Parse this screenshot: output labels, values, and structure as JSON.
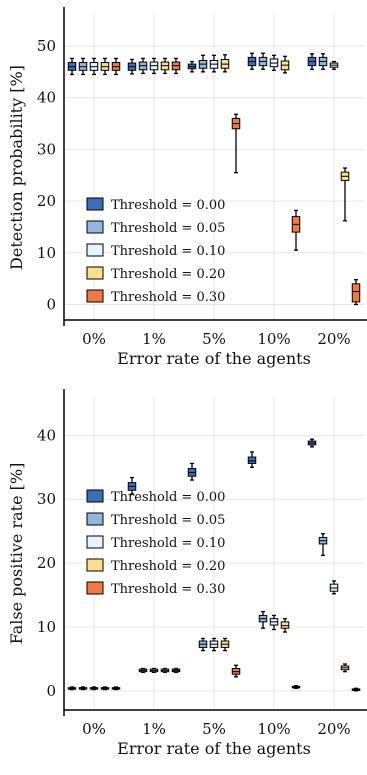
{
  "colors": {
    "series": [
      "#3a6fb7",
      "#8fb8dc",
      "#e6f3fb",
      "#fbdf8f",
      "#f07a45"
    ]
  },
  "chart_data": [
    {
      "type": "box",
      "title": "",
      "xlabel": "Error rate of the agents",
      "ylabel": "Detection probability [%]",
      "categories": [
        "0%",
        "1%",
        "5%",
        "10%",
        "20%"
      ],
      "yticks": [
        0,
        10,
        20,
        30,
        40,
        50
      ],
      "ylim": [
        -3,
        56
      ],
      "grid": true,
      "legend_position": "bottom-left",
      "series": [
        {
          "name": "Threshold = 0.00",
          "boxes": [
            {
              "min": 44.5,
              "q1": 45.3,
              "median": 46.0,
              "q3": 46.8,
              "max": 47.6
            },
            {
              "min": 44.6,
              "q1": 45.3,
              "median": 46.0,
              "q3": 46.7,
              "max": 47.4
            },
            {
              "min": 45.0,
              "q1": 45.6,
              "median": 46.0,
              "q3": 46.5,
              "max": 47.0
            },
            {
              "min": 45.5,
              "q1": 46.2,
              "median": 47.0,
              "q3": 47.8,
              "max": 48.6
            },
            {
              "min": 45.5,
              "q1": 46.2,
              "median": 47.0,
              "q3": 47.8,
              "max": 48.5
            }
          ]
        },
        {
          "name": "Threshold = 0.05",
          "boxes": [
            {
              "min": 44.5,
              "q1": 45.3,
              "median": 46.0,
              "q3": 46.8,
              "max": 47.6
            },
            {
              "min": 44.7,
              "q1": 45.4,
              "median": 46.2,
              "q3": 46.9,
              "max": 47.6
            },
            {
              "min": 45.0,
              "q1": 45.7,
              "median": 46.5,
              "q3": 47.2,
              "max": 48.2
            },
            {
              "min": 45.5,
              "q1": 46.2,
              "median": 47.0,
              "q3": 47.8,
              "max": 48.6
            },
            {
              "min": 45.5,
              "q1": 46.2,
              "median": 47.0,
              "q3": 47.8,
              "max": 48.5
            }
          ]
        },
        {
          "name": "Threshold = 0.10",
          "boxes": [
            {
              "min": 44.5,
              "q1": 45.3,
              "median": 46.0,
              "q3": 46.8,
              "max": 47.6
            },
            {
              "min": 44.7,
              "q1": 45.4,
              "median": 46.2,
              "q3": 46.9,
              "max": 47.6
            },
            {
              "min": 45.0,
              "q1": 45.7,
              "median": 46.5,
              "q3": 47.2,
              "max": 48.2
            },
            {
              "min": 45.3,
              "q1": 46.0,
              "median": 46.7,
              "q3": 47.5,
              "max": 48.2
            },
            {
              "min": 45.5,
              "q1": 45.9,
              "median": 46.3,
              "q3": 46.7,
              "max": 47.0
            }
          ]
        },
        {
          "name": "Threshold = 0.20",
          "boxes": [
            {
              "min": 44.5,
              "q1": 45.3,
              "median": 46.0,
              "q3": 46.8,
              "max": 47.6
            },
            {
              "min": 44.7,
              "q1": 45.4,
              "median": 46.2,
              "q3": 46.9,
              "max": 47.6
            },
            {
              "min": 45.0,
              "q1": 45.7,
              "median": 46.5,
              "q3": 47.4,
              "max": 48.3
            },
            {
              "min": 44.8,
              "q1": 45.4,
              "median": 46.3,
              "q3": 47.1,
              "max": 48.0
            },
            {
              "min": 16.2,
              "q1": 24.0,
              "median": 24.8,
              "q3": 25.6,
              "max": 26.4
            }
          ]
        },
        {
          "name": "Threshold = 0.30",
          "boxes": [
            {
              "min": 44.5,
              "q1": 45.3,
              "median": 46.0,
              "q3": 46.8,
              "max": 47.6
            },
            {
              "min": 44.7,
              "q1": 45.4,
              "median": 46.2,
              "q3": 46.9,
              "max": 47.6
            },
            {
              "min": 25.5,
              "q1": 34.0,
              "median": 35.0,
              "q3": 36.0,
              "max": 36.8
            },
            {
              "min": 10.5,
              "q1": 14.0,
              "median": 15.5,
              "q3": 17.0,
              "max": 18.2
            },
            {
              "min": 0.0,
              "q1": 0.5,
              "median": 2.5,
              "q3": 4.0,
              "max": 4.8
            }
          ]
        }
      ]
    },
    {
      "type": "box",
      "title": "",
      "xlabel": "Error rate of the agents",
      "ylabel": "False positive rate [%]",
      "categories": [
        "0%",
        "1%",
        "5%",
        "10%",
        "20%"
      ],
      "yticks": [
        0,
        10,
        20,
        30,
        40
      ],
      "ylim": [
        -3,
        46
      ],
      "grid": true,
      "legend_position": "center-left",
      "series": [
        {
          "name": "Threshold = 0.00",
          "boxes": [
            {
              "min": 0.2,
              "q1": 0.3,
              "median": 0.4,
              "q3": 0.5,
              "max": 0.6
            },
            {
              "min": 30.8,
              "q1": 31.4,
              "median": 32.0,
              "q3": 32.6,
              "max": 33.4
            },
            {
              "min": 33.0,
              "q1": 33.6,
              "median": 34.2,
              "q3": 34.8,
              "max": 35.6
            },
            {
              "min": 35.0,
              "q1": 35.6,
              "median": 36.0,
              "q3": 36.6,
              "max": 37.4
            },
            {
              "min": 38.2,
              "q1": 38.5,
              "median": 38.8,
              "q3": 39.1,
              "max": 39.4
            }
          ]
        },
        {
          "name": "Threshold = 0.05",
          "boxes": [
            {
              "min": 0.2,
              "q1": 0.3,
              "median": 0.4,
              "q3": 0.5,
              "max": 0.6
            },
            {
              "min": 2.9,
              "q1": 3.0,
              "median": 3.2,
              "q3": 3.4,
              "max": 3.5
            },
            {
              "min": 6.3,
              "q1": 6.8,
              "median": 7.3,
              "q3": 7.8,
              "max": 8.2
            },
            {
              "min": 9.8,
              "q1": 10.8,
              "median": 11.3,
              "q3": 11.8,
              "max": 12.4
            },
            {
              "min": 21.2,
              "q1": 23.0,
              "median": 23.5,
              "q3": 24.0,
              "max": 24.6
            }
          ]
        },
        {
          "name": "Threshold = 0.10",
          "boxes": [
            {
              "min": 0.2,
              "q1": 0.3,
              "median": 0.4,
              "q3": 0.5,
              "max": 0.6
            },
            {
              "min": 2.9,
              "q1": 3.0,
              "median": 3.2,
              "q3": 3.4,
              "max": 3.5
            },
            {
              "min": 6.3,
              "q1": 6.8,
              "median": 7.3,
              "q3": 7.8,
              "max": 8.2
            },
            {
              "min": 9.6,
              "q1": 10.3,
              "median": 10.8,
              "q3": 11.3,
              "max": 11.8
            },
            {
              "min": 15.2,
              "q1": 15.6,
              "median": 16.1,
              "q3": 16.7,
              "max": 17.2
            }
          ]
        },
        {
          "name": "Threshold = 0.20",
          "boxes": [
            {
              "min": 0.2,
              "q1": 0.3,
              "median": 0.4,
              "q3": 0.5,
              "max": 0.6
            },
            {
              "min": 2.9,
              "q1": 3.0,
              "median": 3.2,
              "q3": 3.4,
              "max": 3.5
            },
            {
              "min": 6.3,
              "q1": 6.8,
              "median": 7.3,
              "q3": 7.8,
              "max": 8.2
            },
            {
              "min": 9.2,
              "q1": 9.8,
              "median": 10.2,
              "q3": 10.8,
              "max": 11.3
            },
            {
              "min": 3.0,
              "q1": 3.3,
              "median": 3.6,
              "q3": 3.9,
              "max": 4.2
            }
          ]
        },
        {
          "name": "Threshold = 0.30",
          "boxes": [
            {
              "min": 0.2,
              "q1": 0.3,
              "median": 0.4,
              "q3": 0.5,
              "max": 0.6
            },
            {
              "min": 2.9,
              "q1": 3.0,
              "median": 3.2,
              "q3": 3.4,
              "max": 3.5
            },
            {
              "min": 2.2,
              "q1": 2.6,
              "median": 3.0,
              "q3": 3.5,
              "max": 4.0
            },
            {
              "min": 0.4,
              "q1": 0.5,
              "median": 0.6,
              "q3": 0.7,
              "max": 0.8
            },
            {
              "min": 0.0,
              "q1": 0.1,
              "median": 0.2,
              "q3": 0.3,
              "max": 0.4
            }
          ]
        }
      ]
    }
  ]
}
